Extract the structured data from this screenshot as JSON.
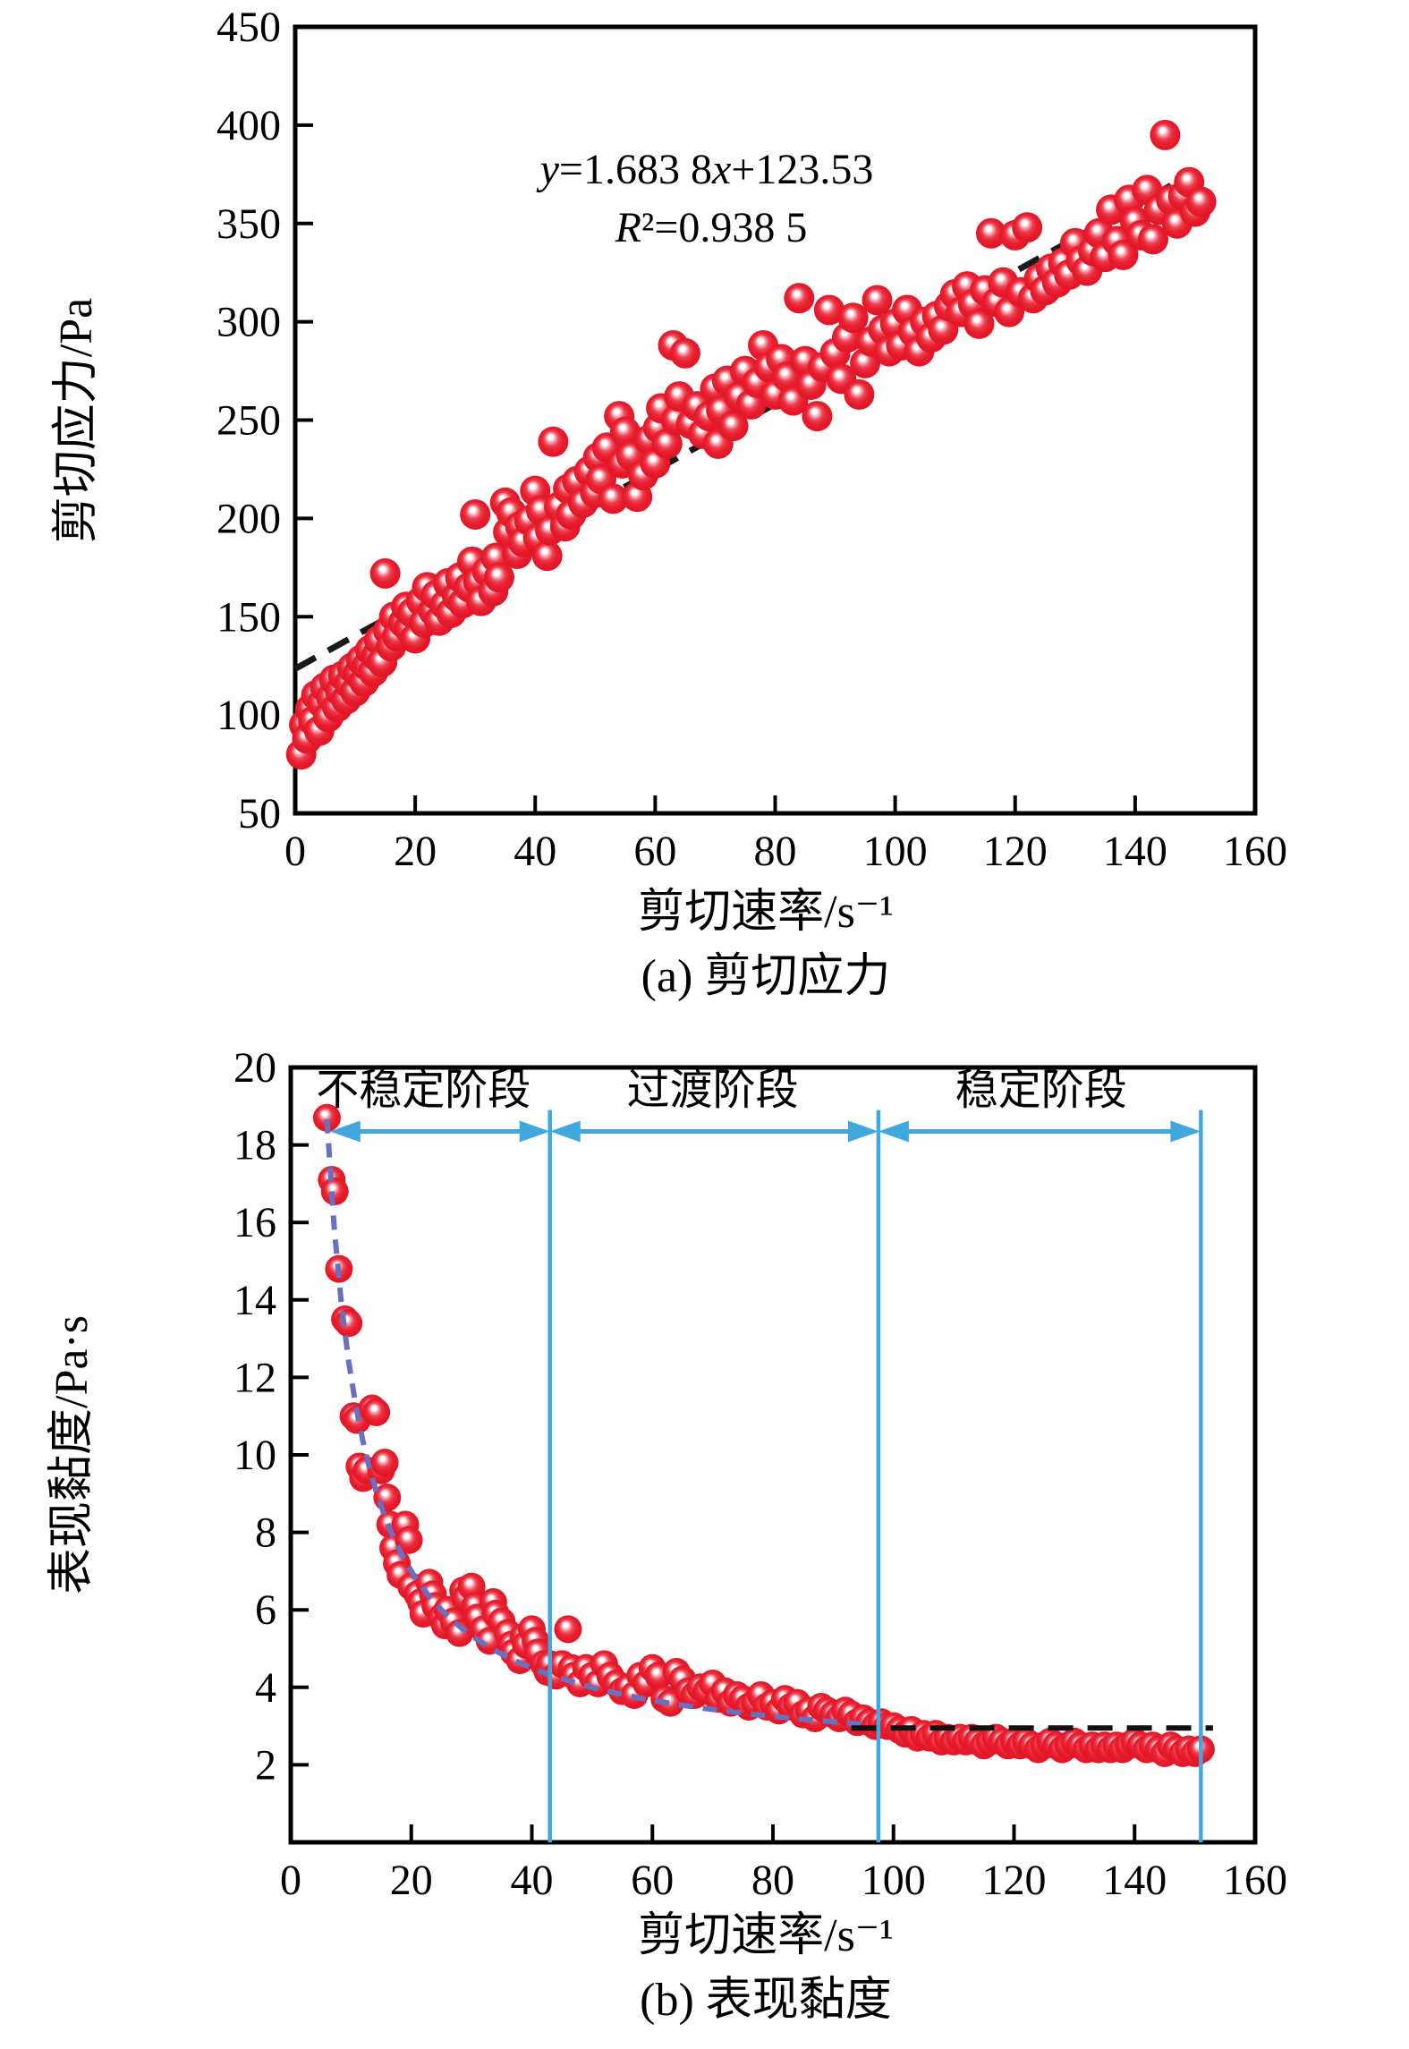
{
  "figure": {
    "background": "#ffffff",
    "marker_color": "#e8202f",
    "fit_line_color": "#1a1a1a",
    "curve_color": "#6a6fc0",
    "accent_blue": "#41a7dc"
  },
  "chart_data": [
    {
      "id": "a",
      "type": "scatter",
      "caption": "(a) 剪切应力",
      "xlabel": "剪切速率/s⁻¹",
      "ylabel": "剪切应力/Pa",
      "xlim": [
        0,
        160
      ],
      "ylim": [
        50,
        450
      ],
      "xticks": [
        0,
        20,
        40,
        60,
        80,
        100,
        120,
        140,
        160
      ],
      "yticks": [
        50,
        100,
        150,
        200,
        250,
        300,
        350,
        400,
        450
      ],
      "equation_line1": "y=1.683 8x+123.53",
      "equation_line2": "R²=0.938 5",
      "fit": {
        "slope": 1.6838,
        "intercept": 123.53,
        "x_start": 0,
        "x_end": 150
      },
      "points": [
        [
          1,
          80
        ],
        [
          1.5,
          95
        ],
        [
          2,
          88
        ],
        [
          2.5,
          103
        ],
        [
          3,
          97
        ],
        [
          3.5,
          110
        ],
        [
          4,
          92
        ],
        [
          4.5,
          106
        ],
        [
          5,
          114
        ],
        [
          5.5,
          99
        ],
        [
          6,
          109
        ],
        [
          6.5,
          118
        ],
        [
          7,
          104
        ],
        [
          7.5,
          112
        ],
        [
          8,
          120
        ],
        [
          8.5,
          108
        ],
        [
          9,
          116
        ],
        [
          9.5,
          124
        ],
        [
          10,
          112
        ],
        [
          10.5,
          121
        ],
        [
          11,
          128
        ],
        [
          11.5,
          117
        ],
        [
          12,
          125
        ],
        [
          12.5,
          133
        ],
        [
          13,
          122
        ],
        [
          13.5,
          130
        ],
        [
          14,
          138
        ],
        [
          14.5,
          127
        ],
        [
          15,
          172
        ],
        [
          15.5,
          143
        ],
        [
          16,
          135
        ],
        [
          16.5,
          150
        ],
        [
          17,
          140
        ],
        [
          18,
          147
        ],
        [
          18.5,
          155
        ],
        [
          19,
          144
        ],
        [
          19.5,
          152
        ],
        [
          20,
          139
        ],
        [
          21,
          158
        ],
        [
          21.5,
          147
        ],
        [
          22,
          165
        ],
        [
          23,
          153
        ],
        [
          23.5,
          161
        ],
        [
          24,
          148
        ],
        [
          25,
          156
        ],
        [
          25.5,
          167
        ],
        [
          26,
          152
        ],
        [
          27,
          160
        ],
        [
          27.5,
          170
        ],
        [
          28,
          157
        ],
        [
          29,
          165
        ],
        [
          29.5,
          178
        ],
        [
          30,
          202
        ],
        [
          30.5,
          168
        ],
        [
          31,
          158
        ],
        [
          32,
          173
        ],
        [
          33,
          163
        ],
        [
          33.5,
          180
        ],
        [
          34,
          170
        ],
        [
          35,
          208
        ],
        [
          35.5,
          193
        ],
        [
          36,
          203
        ],
        [
          37,
          182
        ],
        [
          37.5,
          196
        ],
        [
          38,
          188
        ],
        [
          39,
          199
        ],
        [
          40,
          214
        ],
        [
          40.5,
          190
        ],
        [
          41,
          204
        ],
        [
          42,
          181
        ],
        [
          42.5,
          194
        ],
        [
          43,
          239
        ],
        [
          44,
          206
        ],
        [
          45,
          196
        ],
        [
          45.5,
          215
        ],
        [
          46,
          202
        ],
        [
          47,
          219
        ],
        [
          48,
          208
        ],
        [
          49,
          224
        ],
        [
          50,
          213
        ],
        [
          50.5,
          231
        ],
        [
          51,
          220
        ],
        [
          52,
          236
        ],
        [
          53,
          210
        ],
        [
          54,
          252
        ],
        [
          54.5,
          228
        ],
        [
          55,
          244
        ],
        [
          56,
          232
        ],
        [
          57,
          211
        ],
        [
          58,
          222
        ],
        [
          59,
          240
        ],
        [
          60,
          228
        ],
        [
          60.5,
          246
        ],
        [
          61,
          256
        ],
        [
          62,
          238
        ],
        [
          63,
          288
        ],
        [
          63.5,
          250
        ],
        [
          64,
          262
        ],
        [
          65,
          284
        ],
        [
          66,
          248
        ],
        [
          67,
          257
        ],
        [
          68,
          243
        ],
        [
          69,
          252
        ],
        [
          70,
          266
        ],
        [
          70.5,
          238
        ],
        [
          71,
          255
        ],
        [
          72,
          270
        ],
        [
          73,
          247
        ],
        [
          74,
          262
        ],
        [
          75,
          275
        ],
        [
          76,
          258
        ],
        [
          77,
          269
        ],
        [
          78,
          288
        ],
        [
          79,
          277
        ],
        [
          80,
          263
        ],
        [
          81,
          281
        ],
        [
          82,
          272
        ],
        [
          83,
          260
        ],
        [
          84,
          312
        ],
        [
          85,
          280
        ],
        [
          86,
          268
        ],
        [
          87,
          252
        ],
        [
          88,
          277
        ],
        [
          89,
          306
        ],
        [
          90,
          284
        ],
        [
          91,
          271
        ],
        [
          92,
          292
        ],
        [
          93,
          302
        ],
        [
          94,
          263
        ],
        [
          95,
          279
        ],
        [
          96,
          290
        ],
        [
          97,
          311
        ],
        [
          98,
          296
        ],
        [
          99,
          285
        ],
        [
          100,
          299
        ],
        [
          101,
          288
        ],
        [
          102,
          306
        ],
        [
          103,
          295
        ],
        [
          104,
          285
        ],
        [
          105,
          300
        ],
        [
          106,
          292
        ],
        [
          107,
          303
        ],
        [
          108,
          296
        ],
        [
          109,
          308
        ],
        [
          110,
          314
        ],
        [
          111,
          305
        ],
        [
          112,
          318
        ],
        [
          113,
          309
        ],
        [
          114,
          299
        ],
        [
          115,
          316
        ],
        [
          116,
          345
        ],
        [
          117,
          310
        ],
        [
          118,
          320
        ],
        [
          119,
          305
        ],
        [
          120,
          344
        ],
        [
          121,
          315
        ],
        [
          122,
          348
        ],
        [
          123,
          312
        ],
        [
          124,
          322
        ],
        [
          125,
          316
        ],
        [
          126,
          327
        ],
        [
          127,
          320
        ],
        [
          128,
          330
        ],
        [
          129,
          324
        ],
        [
          130,
          340
        ],
        [
          131,
          331
        ],
        [
          132,
          326
        ],
        [
          133,
          336
        ],
        [
          134,
          345
        ],
        [
          135,
          333
        ],
        [
          136,
          357
        ],
        [
          137,
          341
        ],
        [
          138,
          334
        ],
        [
          139,
          362
        ],
        [
          140,
          351
        ],
        [
          141,
          344
        ],
        [
          142,
          367
        ],
        [
          143,
          342
        ],
        [
          144,
          357
        ],
        [
          145,
          395
        ],
        [
          146,
          362
        ],
        [
          147,
          350
        ],
        [
          148,
          364
        ],
        [
          149,
          371
        ],
        [
          150,
          356
        ],
        [
          151,
          361
        ]
      ]
    },
    {
      "id": "b",
      "type": "scatter",
      "caption": "(b) 表现黏度",
      "xlabel": "剪切速率/s⁻¹",
      "ylabel": "表现黏度/Pa·s",
      "xlim": [
        0,
        160
      ],
      "ylim": [
        0,
        20
      ],
      "xticks": [
        0,
        20,
        40,
        60,
        80,
        100,
        120,
        140,
        160
      ],
      "yticks": [
        2,
        4,
        6,
        8,
        10,
        12,
        14,
        16,
        18,
        20
      ],
      "regions": [
        {
          "label": "不稳定阶段",
          "arrow_from": 6.5,
          "arrow_to": 43,
          "label_x": 22
        },
        {
          "label": "过渡阶段",
          "arrow_from": 43,
          "arrow_to": 97.5,
          "label_x": 70
        },
        {
          "label": "稳定阶段",
          "arrow_from": 97.5,
          "arrow_to": 151,
          "label_x": 124.5
        }
      ],
      "dividers": [
        43,
        97.5,
        151
      ],
      "divider_top": 18.9,
      "arrow_y": 18.35,
      "region_label_y": 19.05,
      "curve_fit": {
        "a": 2.0,
        "b": 100,
        "x_start": 6,
        "x_end": 95
      },
      "plateau_line": {
        "y": 2.95,
        "x_start": 93,
        "x_end": 153
      },
      "points": [
        [
          6,
          18.7
        ],
        [
          6.8,
          17.1
        ],
        [
          7.3,
          16.8
        ],
        [
          8,
          14.8
        ],
        [
          9,
          13.5
        ],
        [
          9.6,
          13.4
        ],
        [
          10.4,
          11.0
        ],
        [
          11,
          10.9
        ],
        [
          11.4,
          9.7
        ],
        [
          12,
          9.4
        ],
        [
          12.6,
          9.6
        ],
        [
          13.5,
          11.2
        ],
        [
          14.2,
          11.1
        ],
        [
          15,
          9.6
        ],
        [
          15.6,
          9.8
        ],
        [
          16,
          8.9
        ],
        [
          16.5,
          8.2
        ],
        [
          17,
          7.6
        ],
        [
          17.6,
          7.2
        ],
        [
          18.2,
          6.9
        ],
        [
          19,
          8.2
        ],
        [
          19.6,
          7.8
        ],
        [
          20,
          6.6
        ],
        [
          21,
          6.4
        ],
        [
          21.6,
          6.2
        ],
        [
          22,
          5.9
        ],
        [
          23,
          6.7
        ],
        [
          23.6,
          6.4
        ],
        [
          24,
          6.1
        ],
        [
          25,
          5.8
        ],
        [
          25.6,
          5.6
        ],
        [
          26,
          6.0
        ],
        [
          27,
          5.7
        ],
        [
          28,
          5.4
        ],
        [
          28.6,
          6.5
        ],
        [
          29,
          6.3
        ],
        [
          30,
          6.6
        ],
        [
          30.6,
          6.1
        ],
        [
          31,
          5.8
        ],
        [
          32,
          5.5
        ],
        [
          33,
          5.2
        ],
        [
          33.6,
          6.2
        ],
        [
          34,
          5.9
        ],
        [
          35,
          5.7
        ],
        [
          36,
          5.4
        ],
        [
          36.6,
          5.1
        ],
        [
          37,
          4.9
        ],
        [
          38,
          4.7
        ],
        [
          38.6,
          5.3
        ],
        [
          39,
          5.1
        ],
        [
          40,
          5.5
        ],
        [
          40.6,
          5.2
        ],
        [
          41,
          4.9
        ],
        [
          42,
          4.6
        ],
        [
          42.6,
          4.4
        ],
        [
          43,
          4.6
        ],
        [
          44,
          4.3
        ],
        [
          45,
          4.6
        ],
        [
          46,
          5.5
        ],
        [
          46.6,
          4.5
        ],
        [
          47,
          4.3
        ],
        [
          48,
          4.1
        ],
        [
          49,
          4.5
        ],
        [
          50,
          4.3
        ],
        [
          51,
          4.1
        ],
        [
          52,
          4.6
        ],
        [
          53,
          4.3
        ],
        [
          54,
          4.1
        ],
        [
          55,
          3.9
        ],
        [
          56,
          4.0
        ],
        [
          57,
          3.8
        ],
        [
          58,
          4.3
        ],
        [
          59,
          4.1
        ],
        [
          60,
          4.5
        ],
        [
          61,
          4.3
        ],
        [
          62,
          3.7
        ],
        [
          63,
          3.6
        ],
        [
          64,
          4.4
        ],
        [
          65,
          4.2
        ],
        [
          66,
          3.9
        ],
        [
          67,
          3.8
        ],
        [
          68,
          4.0
        ],
        [
          69,
          3.9
        ],
        [
          70,
          4.1
        ],
        [
          71,
          3.7
        ],
        [
          72,
          3.9
        ],
        [
          73,
          3.6
        ],
        [
          74,
          3.8
        ],
        [
          75,
          3.7
        ],
        [
          76,
          3.5
        ],
        [
          77,
          3.6
        ],
        [
          78,
          3.8
        ],
        [
          79,
          3.5
        ],
        [
          80,
          3.6
        ],
        [
          81,
          3.4
        ],
        [
          82,
          3.7
        ],
        [
          83,
          3.5
        ],
        [
          84,
          3.6
        ],
        [
          85,
          3.3
        ],
        [
          86,
          3.4
        ],
        [
          87,
          3.2
        ],
        [
          88,
          3.5
        ],
        [
          89,
          3.4
        ],
        [
          90,
          3.3
        ],
        [
          91,
          3.2
        ],
        [
          92,
          3.4
        ],
        [
          93,
          3.3
        ],
        [
          94,
          3.1
        ],
        [
          95,
          3.2
        ],
        [
          96,
          3.1
        ],
        [
          97,
          3.0
        ],
        [
          98,
          3.1
        ],
        [
          99,
          3.0
        ],
        [
          100,
          3.0
        ],
        [
          101,
          2.9
        ],
        [
          102,
          2.8
        ],
        [
          103,
          2.9
        ],
        [
          104,
          2.7
        ],
        [
          105,
          2.8
        ],
        [
          106,
          2.7
        ],
        [
          107,
          2.8
        ],
        [
          108,
          2.6
        ],
        [
          109,
          2.7
        ],
        [
          110,
          2.6
        ],
        [
          111,
          2.7
        ],
        [
          112,
          2.6
        ],
        [
          113,
          2.7
        ],
        [
          114,
          2.6
        ],
        [
          115,
          2.5
        ],
        [
          116,
          2.6
        ],
        [
          117,
          2.7
        ],
        [
          118,
          2.6
        ],
        [
          119,
          2.5
        ],
        [
          120,
          2.6
        ],
        [
          121,
          2.5
        ],
        [
          122,
          2.6
        ],
        [
          123,
          2.5
        ],
        [
          124,
          2.4
        ],
        [
          125,
          2.5
        ],
        [
          126,
          2.6
        ],
        [
          127,
          2.5
        ],
        [
          128,
          2.4
        ],
        [
          129,
          2.5
        ],
        [
          130,
          2.6
        ],
        [
          131,
          2.5
        ],
        [
          132,
          2.4
        ],
        [
          133,
          2.5
        ],
        [
          134,
          2.4
        ],
        [
          135,
          2.5
        ],
        [
          136,
          2.4
        ],
        [
          137,
          2.5
        ],
        [
          138,
          2.4
        ],
        [
          139,
          2.5
        ],
        [
          140,
          2.6
        ],
        [
          141,
          2.5
        ],
        [
          142,
          2.4
        ],
        [
          143,
          2.5
        ],
        [
          144,
          2.4
        ],
        [
          145,
          2.3
        ],
        [
          146,
          2.5
        ],
        [
          147,
          2.4
        ],
        [
          148,
          2.3
        ],
        [
          149,
          2.4
        ],
        [
          150,
          2.3
        ],
        [
          151,
          2.4
        ]
      ]
    }
  ]
}
